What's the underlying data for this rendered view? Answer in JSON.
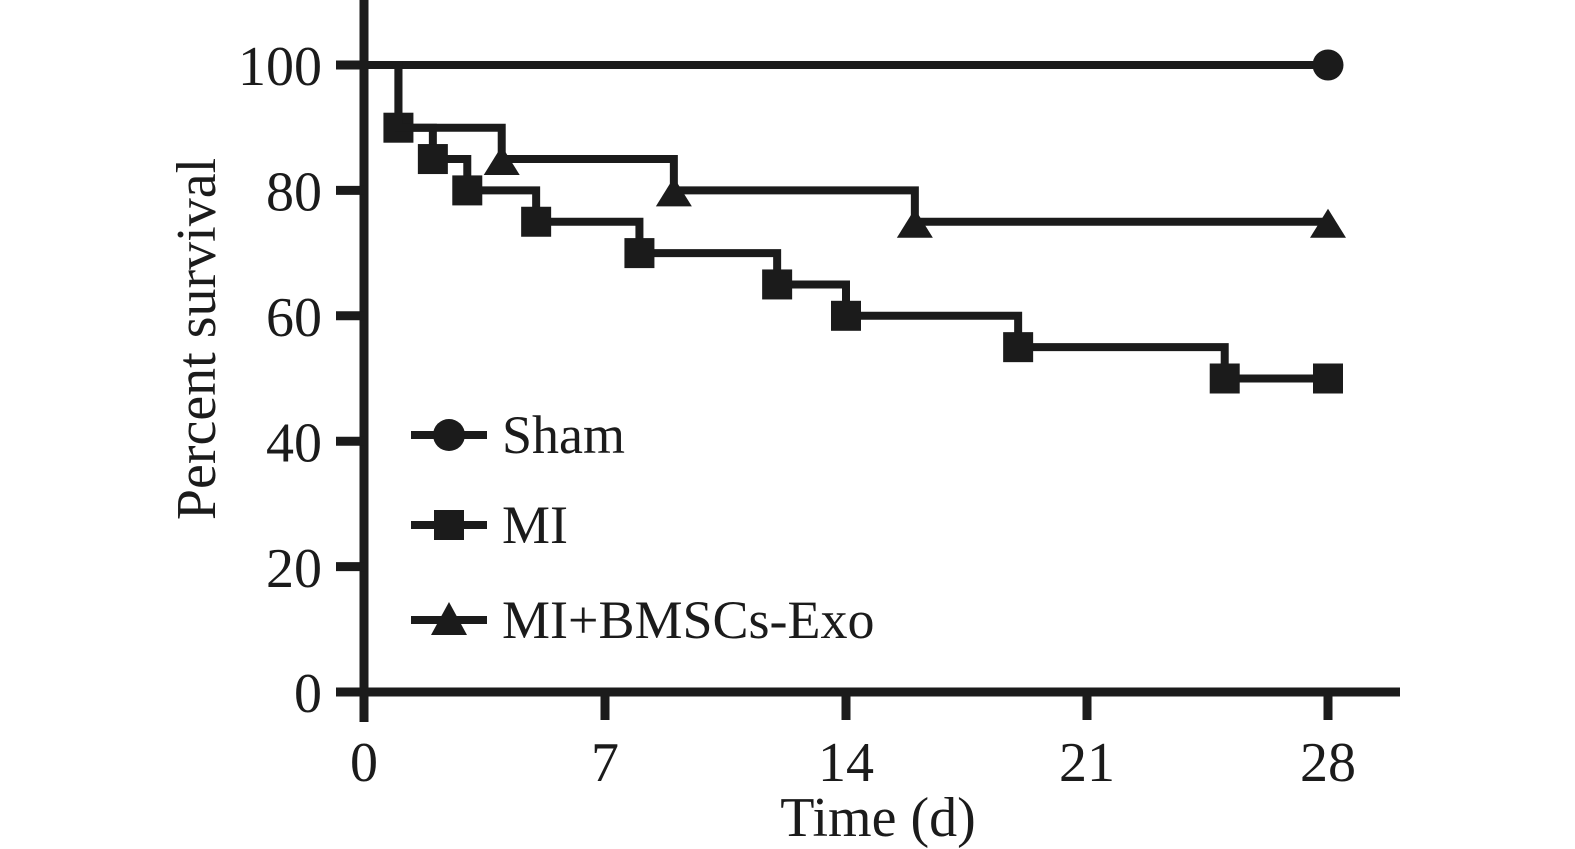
{
  "figure": {
    "background": "#ffffff",
    "ink_color": "#1b1b1b"
  },
  "chart_data": {
    "type": "line",
    "subtype": "kaplan-meier-step-survival",
    "title": "",
    "xlabel": "Time (d)",
    "ylabel": "Percent survival",
    "xlim": [
      0,
      28
    ],
    "ylim": [
      0,
      100
    ],
    "xticks": [
      0,
      7,
      14,
      21,
      28
    ],
    "yticks": [
      0,
      20,
      40,
      60,
      80,
      100
    ],
    "grid": false,
    "color": "#1b1b1b",
    "legend_position": "inside-lower-left",
    "series": [
      {
        "name": "Sham",
        "marker": "circle",
        "steps": [
          [
            0,
            100
          ],
          [
            28,
            100
          ]
        ],
        "marker_points": [
          [
            28,
            100
          ]
        ]
      },
      {
        "name": "MI",
        "marker": "square",
        "steps": [
          [
            0,
            100
          ],
          [
            1,
            90
          ],
          [
            2,
            85
          ],
          [
            3,
            80
          ],
          [
            5,
            75
          ],
          [
            8,
            70
          ],
          [
            12,
            65
          ],
          [
            14,
            60
          ],
          [
            19,
            55
          ],
          [
            25,
            50
          ],
          [
            28,
            50
          ]
        ],
        "marker_points": [
          [
            1,
            90
          ],
          [
            2,
            85
          ],
          [
            3,
            80
          ],
          [
            5,
            75
          ],
          [
            8,
            70
          ],
          [
            12,
            65
          ],
          [
            14,
            60
          ],
          [
            19,
            55
          ],
          [
            25,
            50
          ],
          [
            28,
            50
          ]
        ]
      },
      {
        "name": "MI+BMSCs-Exo",
        "marker": "triangle",
        "steps": [
          [
            0,
            100
          ],
          [
            1,
            90
          ],
          [
            4,
            85
          ],
          [
            9,
            80
          ],
          [
            16,
            75
          ],
          [
            28,
            75
          ]
        ],
        "marker_points": [
          [
            4,
            85
          ],
          [
            9,
            80
          ],
          [
            16,
            75
          ],
          [
            28,
            75
          ]
        ]
      }
    ]
  }
}
